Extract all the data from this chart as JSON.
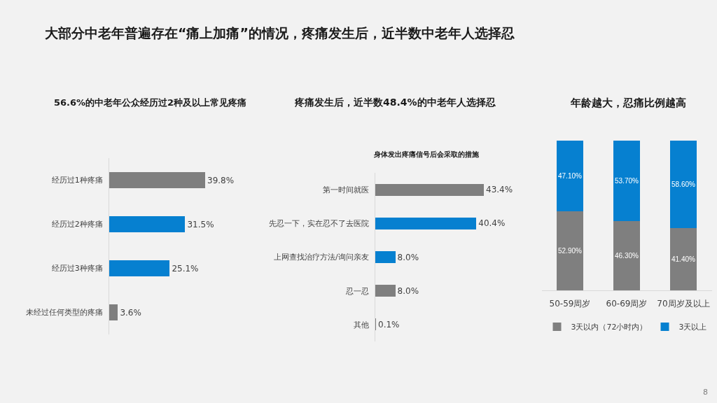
{
  "chart_data": [
    {
      "type": "bar",
      "orientation": "horizontal",
      "title": "大部分中老年普遍存在“痛上加痛”的情况，疼痛发生后，近半数中老年人选择忍",
      "subtitle": "56.6%的中老年公众经历过2种及以上常见疼痛",
      "categories": [
        "经历过1种疼痛",
        "经历过2种疼痛",
        "经历过3种疼痛",
        "未经过任何类型的疼痛"
      ],
      "values": [
        39.8,
        31.5,
        25.1,
        3.6
      ],
      "colors": [
        "#7f7f7f",
        "#0680d0",
        "#0680d0",
        "#7f7f7f"
      ],
      "value_labels": [
        "39.8%",
        "31.5%",
        "25.1%",
        "3.6%"
      ],
      "tick_labels": "y"
    },
    {
      "type": "bar",
      "orientation": "horizontal",
      "title": "疼痛发生后，近半数48.4%的中老年人选择忍",
      "subtitle": "身体发出疼痛信号后会采取的措施",
      "categories": [
        "第一时间就医",
        "先忍一下，实在忍不了去医院",
        "上网查找治疗方法/询问亲友",
        "忍一忍",
        "其他"
      ],
      "values": [
        43.4,
        40.4,
        8.0,
        8.0,
        0.1
      ],
      "colors": [
        "#7f7f7f",
        "#0680d0",
        "#0680d0",
        "#7f7f7f",
        "#7f7f7f"
      ],
      "value_labels": [
        "43.4%",
        "40.4%",
        "8.0%",
        "8.0%",
        "0.1%"
      ],
      "tick_labels": "y"
    },
    {
      "type": "bar",
      "stacked": true,
      "title": "年龄越大，忍痛比例越高",
      "categories": [
        "50-59周岁",
        "60-69周岁",
        "70周岁及以上"
      ],
      "series": [
        {
          "name": "3天以内（72小时内）",
          "color": "#7f7f7f",
          "values": [
            52.9,
            46.3,
            41.4
          ],
          "value_labels": [
            "52.90%",
            "46.30%",
            "41.40%"
          ]
        },
        {
          "name": "3天以上",
          "color": "#0680d0",
          "values": [
            47.1,
            53.7,
            58.6
          ],
          "value_labels": [
            "47.10%",
            "53.70%",
            "58.60%"
          ]
        }
      ],
      "legend": "bottom",
      "tick_labels": "x",
      "annotations": [
        "8"
      ]
    }
  ]
}
